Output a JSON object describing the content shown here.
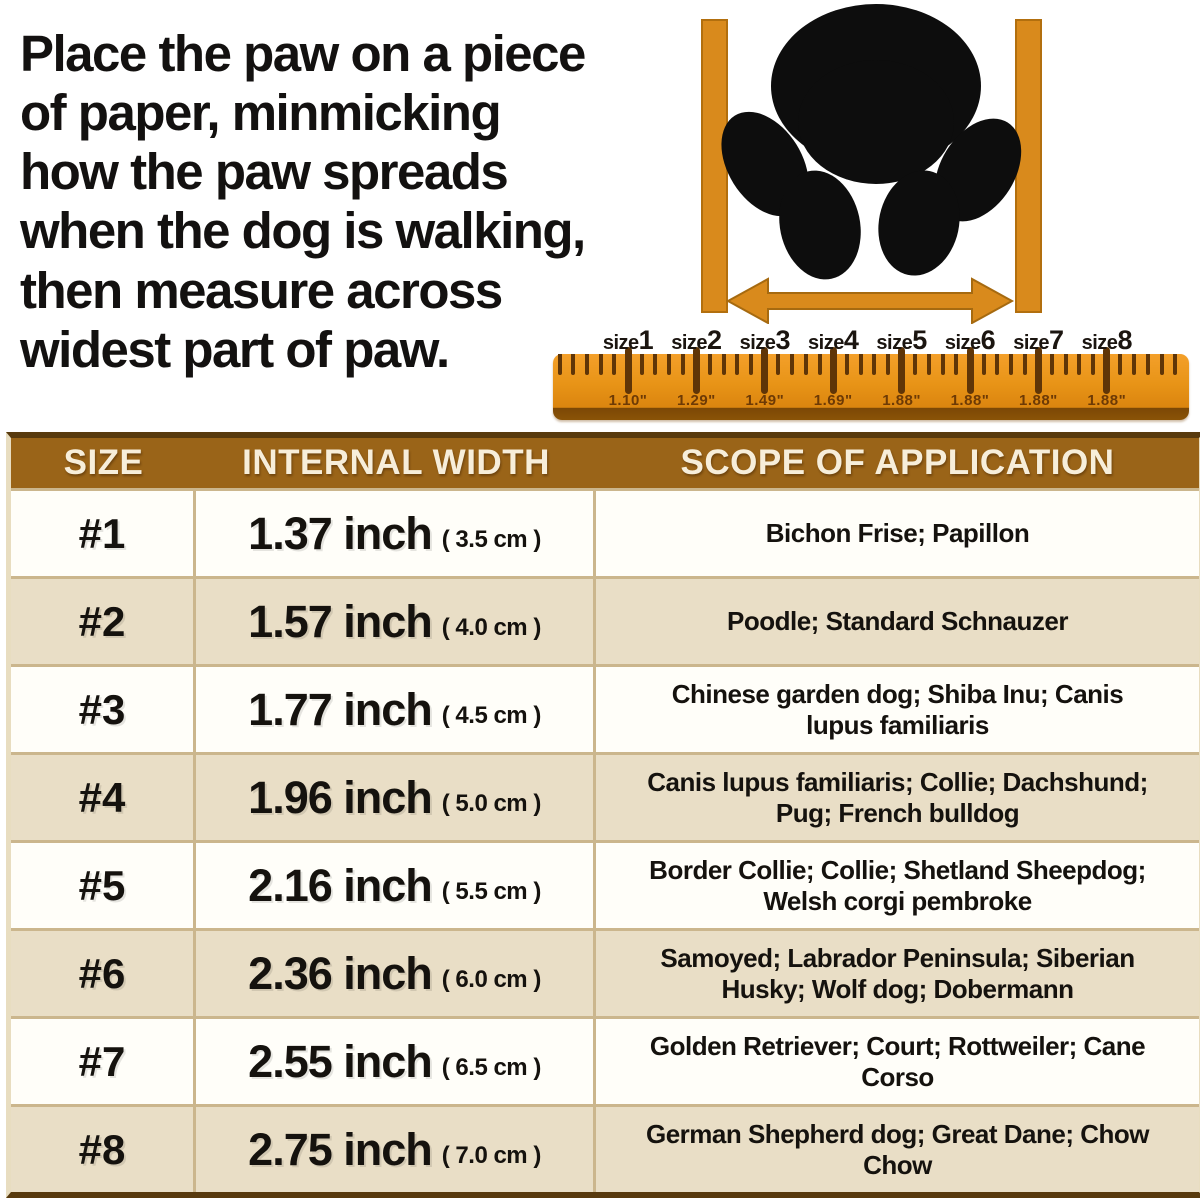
{
  "instruction": {
    "text": "Place the paw on a piece\nof paper, minmicking\nhow the paw spreads\nwhen the dog is walking,\nthen measure across\nwidest part of paw."
  },
  "diagram": {
    "paw_icon": "dog-paw-print",
    "caliper_icon": "vertical-measuring-bars",
    "arrow_icon": "double-headed-width-arrow"
  },
  "ruler": {
    "sizes": [
      {
        "label": "size1",
        "measure": "1.10\""
      },
      {
        "label": "size2",
        "measure": "1.29\""
      },
      {
        "label": "size3",
        "measure": "1.49\""
      },
      {
        "label": "size4",
        "measure": "1.69\""
      },
      {
        "label": "size5",
        "measure": "1.88\""
      },
      {
        "label": "size6",
        "measure": "1.88\""
      },
      {
        "label": "size7",
        "measure": "1.88\""
      },
      {
        "label": "size8",
        "measure": "1.88\""
      }
    ]
  },
  "table": {
    "headers": [
      "SIZE",
      "INTERNAL WIDTH",
      "SCOPE OF APPLICATION"
    ],
    "rows": [
      {
        "size": "#1",
        "inch": "1.37 inch",
        "cm": "( 3.5 cm )",
        "scope": "Bichon Frise; Papillon"
      },
      {
        "size": "#2",
        "inch": "1.57 inch",
        "cm": "( 4.0 cm )",
        "scope": "Poodle; Standard Schnauzer"
      },
      {
        "size": "#3",
        "inch": "1.77 inch",
        "cm": "( 4.5 cm )",
        "scope": "Chinese garden dog; Shiba Inu; Canis lupus familiaris"
      },
      {
        "size": "#4",
        "inch": "1.96 inch",
        "cm": "( 5.0 cm )",
        "scope": "Canis lupus familiaris; Collie; Dachshund; Pug; French bulldog"
      },
      {
        "size": "#5",
        "inch": "2.16 inch",
        "cm": "( 5.5 cm )",
        "scope": "Border Collie; Collie; Shetland Sheepdog; Welsh corgi pembroke"
      },
      {
        "size": "#6",
        "inch": "2.36 inch",
        "cm": "( 6.0 cm )",
        "scope": "Samoyed; Labrador Peninsula; Siberian Husky; Wolf dog; Dobermann"
      },
      {
        "size": "#7",
        "inch": "2.55 inch",
        "cm": "( 6.5 cm )",
        "scope": "Golden Retriever; Court; Rottweiler; Cane Corso"
      },
      {
        "size": "#8",
        "inch": "2.75 inch",
        "cm": "( 7.0 cm )",
        "scope": "German Shepherd dog; Great Dane; Chow Chow"
      }
    ]
  },
  "colors": {
    "header_brown": "#9a6418",
    "dark_brown_border": "#583a0e",
    "row_beige": "#e9dec6",
    "row_white": "#fffef9",
    "divider_tan": "#cbb68d",
    "ruler_orange": "#e89417",
    "accent_orange": "#d98a1c",
    "paw_black": "#0d0d0d"
  }
}
